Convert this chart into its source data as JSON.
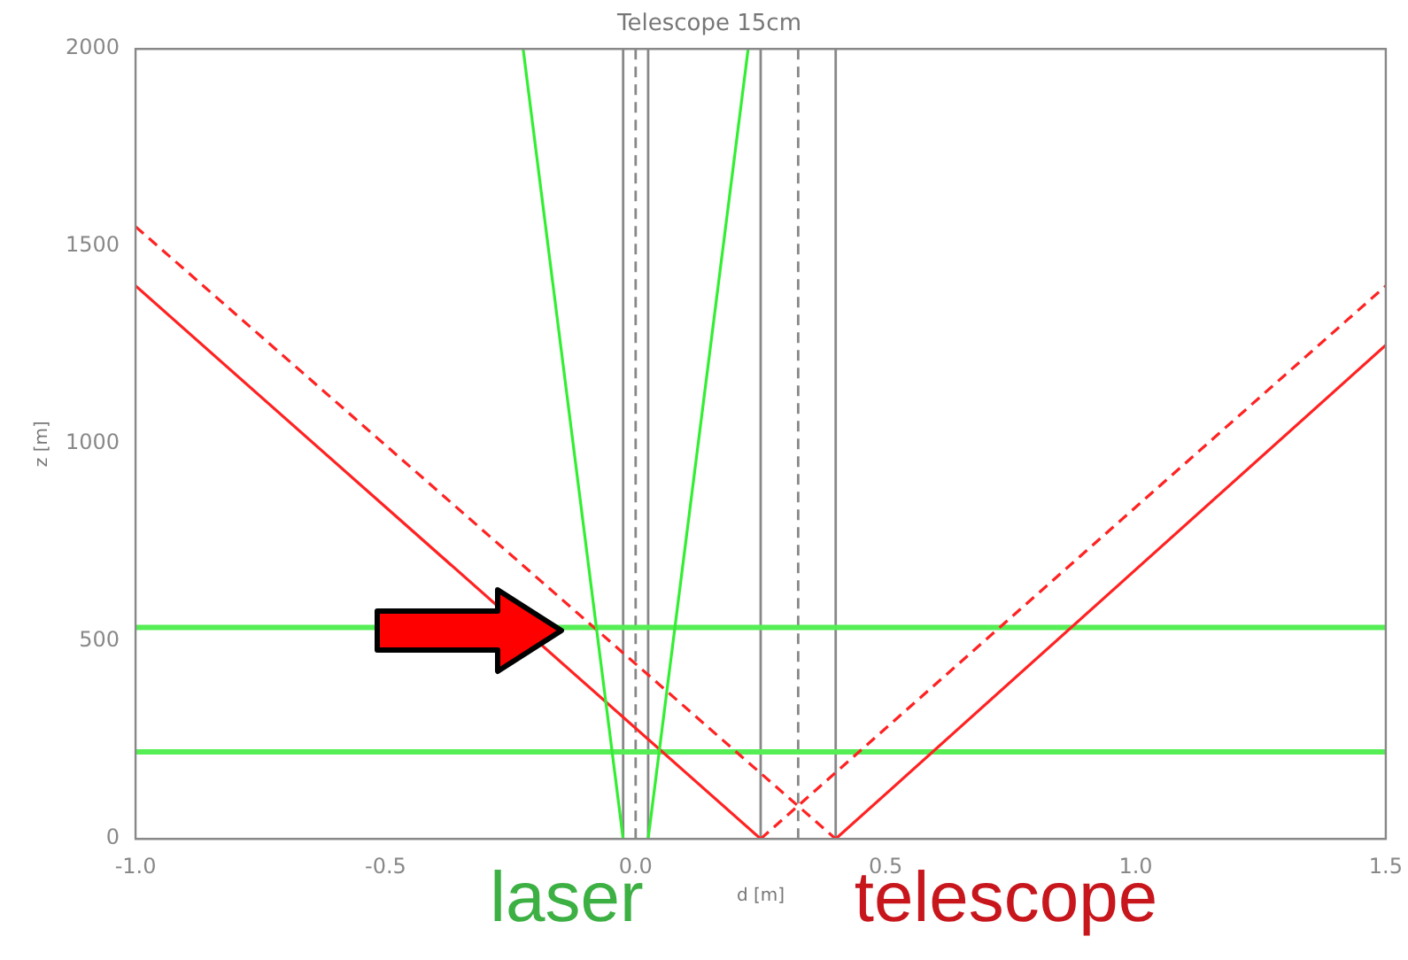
{
  "chart_data": {
    "type": "line",
    "title": "Telescope 15cm",
    "xlabel": "d [m]",
    "ylabel": "z [m]",
    "xlim": [
      -1.0,
      1.5
    ],
    "xticks": [
      {
        "value": -1,
        "label": "-1.0"
      },
      {
        "value": -0.5,
        "label": "-0.5"
      },
      {
        "value": 0,
        "label": "0.0"
      },
      {
        "value": 0.5,
        "label": "0.5"
      },
      {
        "value": 1,
        "label": "1.0"
      },
      {
        "value": 1.5,
        "label": "1.5"
      }
    ],
    "ylim": [
      0,
      2000
    ],
    "yticks": [
      0,
      500,
      1000,
      1500,
      2000
    ],
    "grid": false,
    "legend": false,
    "marker": "none",
    "series": [
      {
        "color": "#33ee33",
        "x": [
          -0.225,
          -0.025
        ],
        "values": [
          2000,
          0
        ]
      },
      {
        "color": "#33ee33",
        "x": [
          0.025,
          0.225
        ],
        "values": [
          0,
          2000
        ]
      },
      {
        "color": "#ff2222",
        "x": [
          -1.0,
          0.25
        ],
        "values": [
          1400,
          0
        ]
      },
      {
        "color": "#ff2222",
        "x": [
          0.4,
          1.5
        ],
        "values": [
          0,
          1250
        ]
      },
      {
        "color": "#ff2222",
        "line_style": "dashed",
        "x": [
          -1.0,
          0.4
        ],
        "values": [
          1550,
          0
        ]
      },
      {
        "color": "#ff2222",
        "line_style": "dashed",
        "x": [
          0.25,
          1.5
        ],
        "values": [
          0,
          1400
        ]
      }
    ],
    "ref_lines": [
      {
        "axis": "x",
        "value": -0.025,
        "color": "#888888"
      },
      {
        "axis": "x",
        "value": 0,
        "color": "#888888",
        "line_style": "dashed"
      },
      {
        "axis": "x",
        "value": 0.025,
        "color": "#888888"
      },
      {
        "axis": "x",
        "value": 0.25,
        "color": "#888888"
      },
      {
        "axis": "x",
        "value": 0.325,
        "color": "#888888",
        "line_style": "dashed"
      },
      {
        "axis": "x",
        "value": 0.4,
        "color": "#888888"
      },
      {
        "axis": "y",
        "value": 535,
        "color": "#55ee55"
      },
      {
        "axis": "y",
        "value": 220,
        "color": "#55ee55"
      }
    ],
    "annotations": [
      "laser",
      "telescope"
    ]
  }
}
